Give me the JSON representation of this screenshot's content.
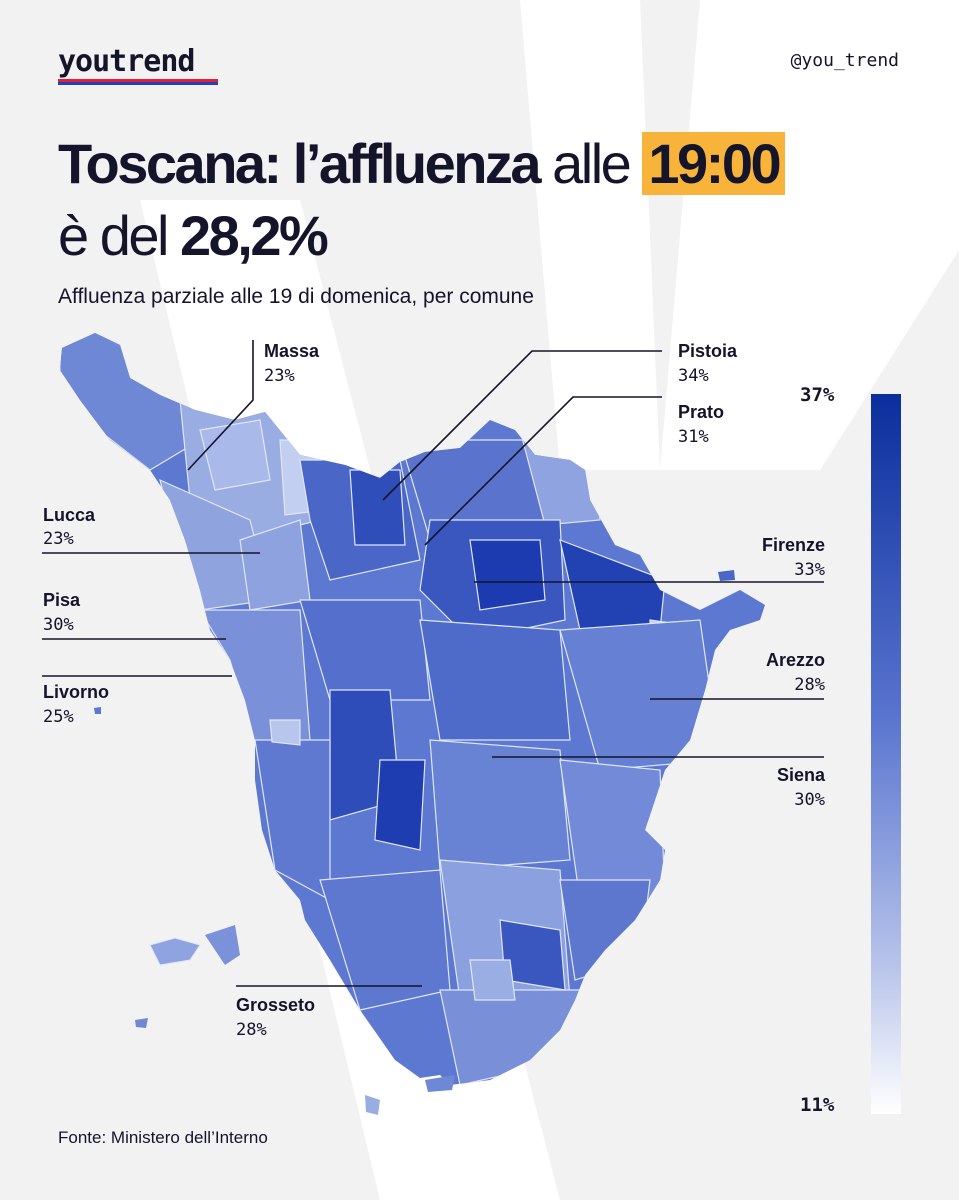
{
  "brand": {
    "logo": "youtrend",
    "handle": "@you_trend"
  },
  "title": {
    "part1": "Toscana",
    "part2": ": l’",
    "part3": "affluenza",
    "part4": " alle ",
    "time": "19:00",
    "part5": "è del ",
    "value": "28,2%"
  },
  "subtitle": "Affluenza parziale alle 19 di domenica, per comune",
  "source": "Fonte: Ministero dell’Interno",
  "legend": {
    "max_label": "37%",
    "min_label": "11%",
    "max": 37,
    "min": 11,
    "color_high": "#0a2e9c",
    "color_low": "#ffffff"
  },
  "cities": [
    {
      "name": "Massa",
      "value": "23%"
    },
    {
      "name": "Pistoia",
      "value": "34%"
    },
    {
      "name": "Prato",
      "value": "31%"
    },
    {
      "name": "Lucca",
      "value": "23%"
    },
    {
      "name": "Firenze",
      "value": "33%"
    },
    {
      "name": "Pisa",
      "value": "30%"
    },
    {
      "name": "Arezzo",
      "value": "28%"
    },
    {
      "name": "Livorno",
      "value": "25%"
    },
    {
      "name": "Siena",
      "value": "30%"
    },
    {
      "name": "Grosseto",
      "value": "28%"
    }
  ]
}
